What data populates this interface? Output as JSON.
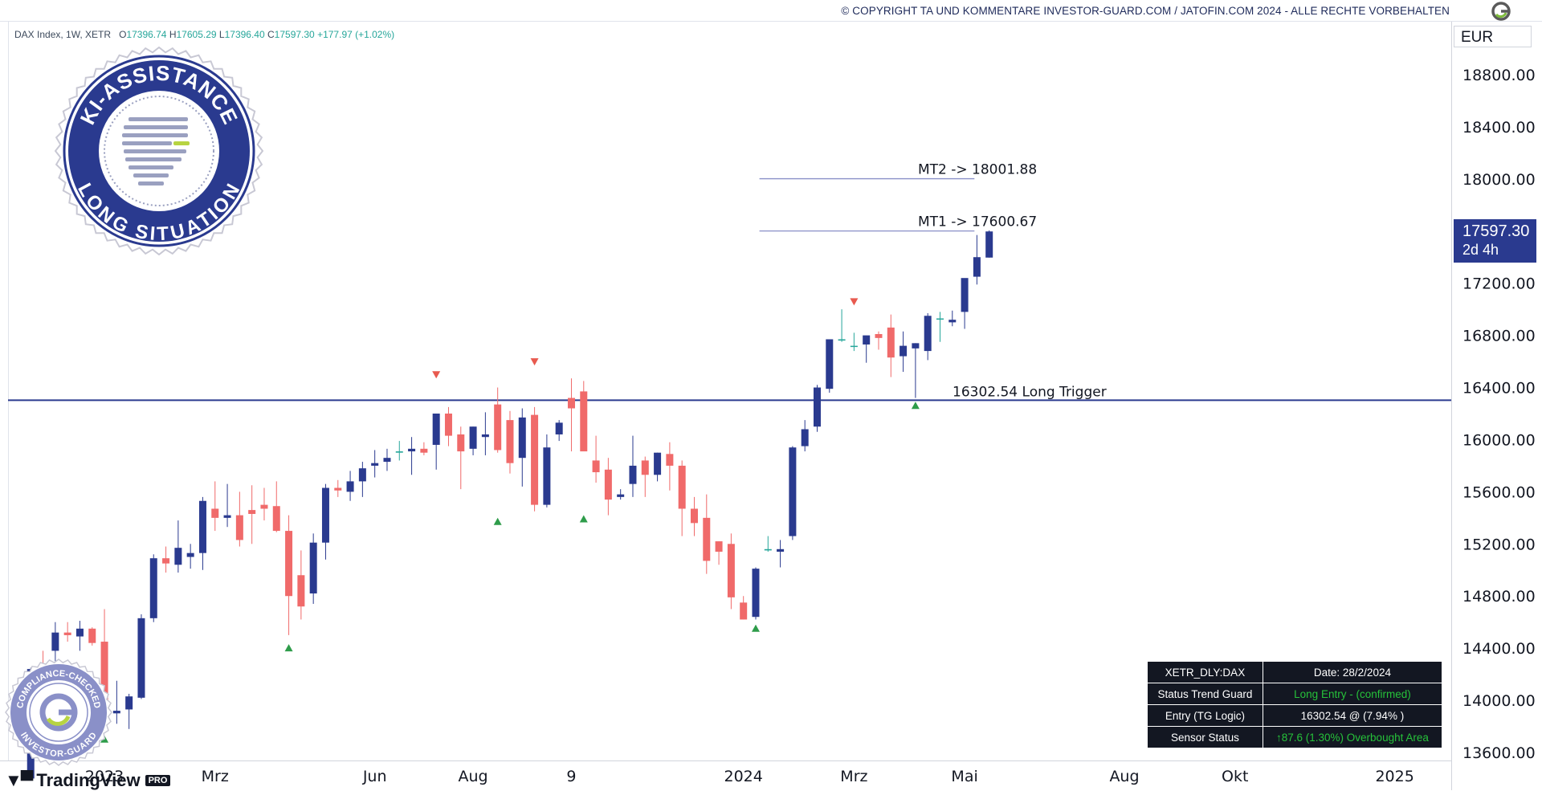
{
  "header": {
    "copyright": "© COPYRIGHT TA UND KOMMENTARE INVESTOR-GUARD.COM / JATOFIN.COM 2024 - ALLE RECHTE VORBEHALTEN"
  },
  "ticker": {
    "name": "DAX Index, 1W, XETR",
    "open_label": "O",
    "open": "17396.74",
    "high_label": "H",
    "high": "17605.29",
    "low_label": "L",
    "low": "17396.40",
    "close_label": "C",
    "close": "17597.30",
    "change": "+177.97 (+1.02%)"
  },
  "currency": "EUR",
  "price_tag": {
    "price": "17597.30",
    "countdown": "2d 4h"
  },
  "branding": {
    "tradingview": "TradingView",
    "pro": "PRO"
  },
  "badges": {
    "main_top": "KI-ASSISTANCE",
    "main_bottom": "LONG SITUATION",
    "small_top": "COMPLIANCE-CHECKED",
    "small_bottom": "INVESTOR-GUARD"
  },
  "status_table": {
    "rows": [
      [
        "XETR_DLY:DAX",
        "Date: 28/2/2024"
      ],
      [
        "Status Trend Guard",
        "Long Entry - (confirmed)"
      ],
      [
        "Entry (TG Logic)",
        "16302.54 @ (7.94% )"
      ],
      [
        "Sensor Status",
        "↑87.6 (1.30%)  Overbought Area"
      ]
    ]
  },
  "colors": {
    "bull": "#2a3a8f",
    "bear": "#f06a6a",
    "doji": "#26a69a",
    "trigger_line": "#2a3a8f",
    "target_line": "#8a90c8",
    "marker_up": "#2e9c4a",
    "marker_down": "#e85a4f"
  },
  "chart_data": {
    "type": "candlestick",
    "title": "DAX Index, 1W, XETR",
    "y_range": [
      13450,
      19000
    ],
    "y_ticks": [
      13600,
      14000,
      14400,
      14800,
      15200,
      15600,
      16000,
      16400,
      16800,
      17200,
      17600,
      18000,
      18400,
      18800
    ],
    "y_tick_labels": [
      "13600.00",
      "14000.00",
      "14400.00",
      "14800.00",
      "15200.00",
      "15600.00",
      "16000.00",
      "16400.00",
      "16800.00",
      "17200.00",
      "17600.00",
      "18000.00",
      "18400.00",
      "18800.00"
    ],
    "x_ticks": [
      {
        "label": "2023",
        "week": 6
      },
      {
        "label": "Mrz",
        "week": 15
      },
      {
        "label": "Jun",
        "week": 28
      },
      {
        "label": "Aug",
        "week": 36
      },
      {
        "label": "9",
        "week": 44
      },
      {
        "label": "2024",
        "week": 58
      },
      {
        "label": "Mrz",
        "week": 67
      },
      {
        "label": "Mai",
        "week": 76
      },
      {
        "label": "Aug",
        "week": 89
      },
      {
        "label": "Okt",
        "week": 98
      },
      {
        "label": "2025",
        "week": 111
      }
    ],
    "week_range": [
      -2.5,
      115.6
    ],
    "candles": [
      [
        0,
        13400,
        14250,
        13400,
        14240
      ],
      [
        1,
        14240,
        14380,
        14150,
        14180
      ],
      [
        2,
        14380,
        14600,
        14300,
        14520
      ],
      [
        3,
        14520,
        14600,
        14450,
        14500
      ],
      [
        4,
        14490,
        14610,
        14380,
        14550
      ],
      [
        5,
        14550,
        14560,
        14420,
        14440
      ],
      [
        6,
        14450,
        14700,
        13800,
        13930
      ],
      [
        7,
        13900,
        14150,
        13820,
        13920
      ],
      [
        8,
        13930,
        14050,
        13780,
        14030
      ],
      [
        9,
        14020,
        14660,
        14010,
        14630
      ],
      [
        10,
        14630,
        15120,
        14600,
        15090
      ],
      [
        11,
        15090,
        15180,
        14980,
        15050
      ],
      [
        12,
        15040,
        15380,
        14980,
        15170
      ],
      [
        13,
        15100,
        15200,
        15010,
        15130
      ],
      [
        14,
        15130,
        15560,
        15000,
        15530
      ],
      [
        15,
        15470,
        15680,
        15300,
        15400
      ],
      [
        16,
        15400,
        15660,
        15330,
        15420
      ],
      [
        17,
        15420,
        15600,
        15180,
        15230
      ],
      [
        18,
        15460,
        15650,
        15200,
        15430
      ],
      [
        19,
        15500,
        15630,
        15380,
        15470
      ],
      [
        20,
        15490,
        15680,
        15290,
        15300
      ],
      [
        21,
        15300,
        15420,
        14500,
        14800
      ],
      [
        22,
        14960,
        15150,
        14620,
        14720
      ],
      [
        23,
        14820,
        15280,
        14740,
        15210
      ],
      [
        24,
        15210,
        15660,
        15080,
        15630
      ],
      [
        25,
        15630,
        15690,
        15560,
        15610
      ],
      [
        26,
        15600,
        15760,
        15530,
        15680
      ],
      [
        27,
        15680,
        15830,
        15560,
        15780
      ],
      [
        28,
        15800,
        15920,
        15710,
        15820
      ],
      [
        29,
        15830,
        15930,
        15760,
        15860
      ],
      [
        30,
        15900,
        15990,
        15840,
        15910
      ],
      [
        31,
        15910,
        16020,
        15730,
        15930
      ],
      [
        32,
        15930,
        15980,
        15880,
        15900
      ],
      [
        33,
        15960,
        16200,
        15770,
        16200
      ],
      [
        34,
        16200,
        16250,
        15950,
        16030
      ],
      [
        35,
        16040,
        16100,
        15620,
        15910
      ],
      [
        36,
        15930,
        16100,
        15880,
        16100
      ],
      [
        37,
        16020,
        16210,
        15880,
        16040
      ],
      [
        38,
        16270,
        16400,
        15900,
        15920
      ],
      [
        39,
        16150,
        16220,
        15740,
        15820
      ],
      [
        40,
        15860,
        16240,
        15640,
        16170
      ],
      [
        41,
        16190,
        16250,
        15450,
        15500
      ],
      [
        42,
        15500,
        16040,
        15480,
        15940
      ],
      [
        43,
        16040,
        16150,
        15990,
        16130
      ],
      [
        44,
        16320,
        16470,
        15910,
        16240
      ],
      [
        45,
        16370,
        16450,
        15960,
        15910
      ],
      [
        46,
        15840,
        16030,
        15670,
        15750
      ],
      [
        47,
        15770,
        15860,
        15420,
        15540
      ],
      [
        48,
        15560,
        15620,
        15540,
        15580
      ],
      [
        49,
        15660,
        16030,
        15560,
        15800
      ],
      [
        50,
        15840,
        15870,
        15560,
        15730
      ],
      [
        51,
        15730,
        15900,
        15680,
        15900
      ],
      [
        52,
        15890,
        15980,
        15610,
        15800
      ],
      [
        53,
        15800,
        15840,
        15260,
        15470
      ],
      [
        54,
        15470,
        15560,
        15260,
        15360
      ],
      [
        55,
        15400,
        15580,
        14970,
        15070
      ],
      [
        56,
        15220,
        15220,
        15040,
        15140
      ],
      [
        57,
        15200,
        15280,
        14700,
        14790
      ],
      [
        58,
        14750,
        14800,
        14620,
        14620
      ],
      [
        59,
        14640,
        15020,
        14620,
        15010
      ],
      [
        60,
        15160,
        15260,
        15140,
        15150
      ],
      [
        61,
        15140,
        15230,
        15020,
        15160
      ],
      [
        62,
        15260,
        15950,
        15230,
        15940
      ],
      [
        63,
        15950,
        16150,
        15910,
        16080
      ],
      [
        64,
        16100,
        16420,
        16060,
        16400
      ],
      [
        65,
        16390,
        16760,
        16360,
        16770
      ],
      [
        66,
        16760,
        17000,
        16750,
        16770
      ],
      [
        67,
        16720,
        16820,
        16680,
        16720
      ],
      [
        68,
        16730,
        16770,
        16590,
        16800
      ],
      [
        69,
        16810,
        16830,
        16690,
        16780
      ],
      [
        70,
        16860,
        16960,
        16480,
        16630
      ],
      [
        71,
        16640,
        16830,
        16520,
        16720
      ],
      [
        72,
        16700,
        16740,
        16320,
        16740
      ],
      [
        73,
        16680,
        16970,
        16610,
        16950
      ],
      [
        74,
        16930,
        16980,
        16750,
        16930
      ],
      [
        75,
        16900,
        16990,
        16870,
        16920
      ],
      [
        76,
        16980,
        17200,
        16850,
        17240
      ],
      [
        77,
        17250,
        17570,
        17190,
        17400
      ],
      [
        78,
        17396.74,
        17605.29,
        17396.4,
        17597.3
      ]
    ],
    "signals": [
      {
        "week": 6,
        "type": "up",
        "price": 13700
      },
      {
        "week": 21,
        "type": "up",
        "price": 14400
      },
      {
        "week": 33,
        "type": "down",
        "price": 16500
      },
      {
        "week": 38,
        "type": "up",
        "price": 15370
      },
      {
        "week": 41,
        "type": "down",
        "price": 16600
      },
      {
        "week": 45,
        "type": "up",
        "price": 15390
      },
      {
        "week": 59,
        "type": "up",
        "price": 14550
      },
      {
        "week": 67,
        "type": "down",
        "price": 17060
      },
      {
        "week": 72,
        "type": "up",
        "price": 16260
      }
    ],
    "levels": [
      {
        "label": "16302.54  Long Trigger",
        "value": 16302.54,
        "type": "trigger"
      },
      {
        "label": "MT1 -> 17600.67",
        "value": 17600.67,
        "type": "target"
      },
      {
        "label": "MT2 -> 18001.88",
        "value": 18001.88,
        "type": "target"
      }
    ]
  }
}
